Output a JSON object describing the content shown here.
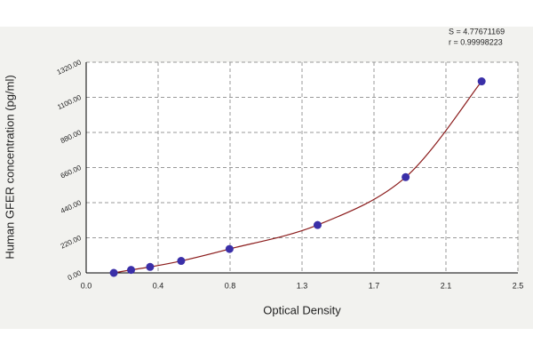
{
  "chart_data": {
    "type": "scatter",
    "xlabel": "Optical Density",
    "ylabel": "Human GFER concentration (pg/ml)",
    "annotations": [
      "S = 4.77671169",
      "r = 0.99998223"
    ],
    "series": [
      {
        "color": "#3a2fa8",
        "line_color": "#8b1c1c",
        "x": [
          0.16,
          0.26,
          0.37,
          0.55,
          0.83,
          1.34,
          1.85,
          2.29
        ],
        "values": [
          0,
          18.75,
          37.5,
          75,
          150,
          300,
          600,
          1200
        ]
      }
    ],
    "xlim": [
      0,
      2.5
    ],
    "xticks": [
      {
        "value": 0,
        "label": "0.0"
      },
      {
        "value": 0.4167,
        "label": "0.4"
      },
      {
        "value": 0.8333,
        "label": "0.8"
      },
      {
        "value": 1.25,
        "label": "1.3"
      },
      {
        "value": 1.6667,
        "label": "1.7"
      },
      {
        "value": 2.0833,
        "label": "2.1"
      },
      2.5
    ],
    "ylim": [
      0,
      1320
    ],
    "yticks": [
      {
        "value": 0,
        "label": "0.00"
      },
      {
        "value": 220,
        "label": "220.00"
      },
      {
        "value": 440,
        "label": "440.00"
      },
      {
        "value": 660,
        "label": "660.00"
      },
      {
        "value": 880,
        "label": "880.00"
      },
      {
        "value": 1100,
        "label": "1100.00"
      },
      {
        "value": 1320,
        "label": "1320.00"
      }
    ],
    "grid": true
  }
}
